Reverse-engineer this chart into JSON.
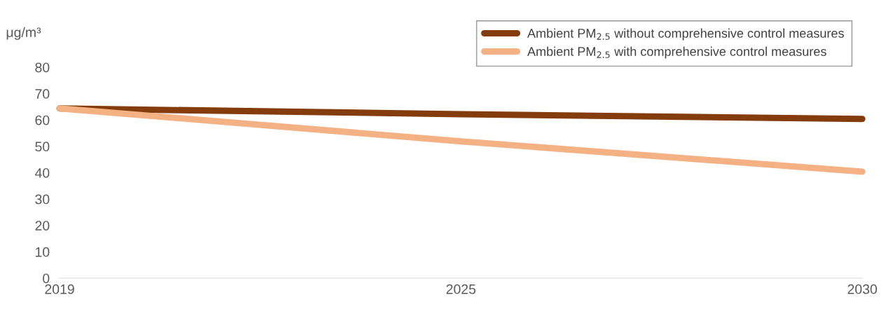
{
  "chart_data": {
    "type": "line",
    "ylabel": "μg/m³",
    "categories": [
      "2019",
      "2025",
      "2030"
    ],
    "series": [
      {
        "name": "Ambient PM$_{2.5}$ without comprehensive control measures",
        "color": "#843c0c",
        "values": [
          64.4,
          62.2,
          60.4
        ]
      },
      {
        "name": "Ambient PM$_{2.5}$ with comprehensive control measures",
        "color": "#f4b183",
        "values": [
          64.4,
          51.9,
          40.4
        ]
      }
    ],
    "ylim": [
      0,
      80
    ],
    "yticks": [
      0,
      10,
      20,
      30,
      40,
      50,
      60,
      70,
      80
    ],
    "grid": false,
    "legend": "top right",
    "marker": "none",
    "line_style": "solid"
  }
}
